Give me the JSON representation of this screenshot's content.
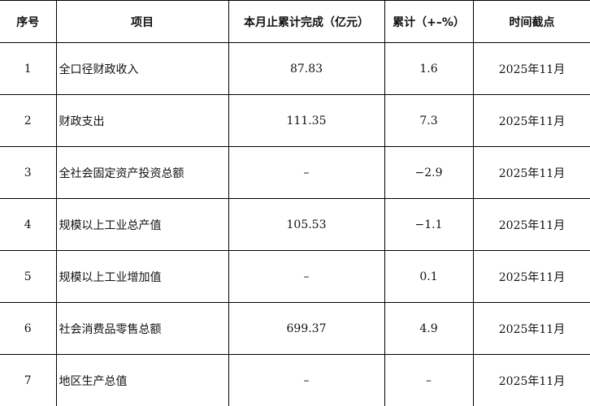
{
  "headers": [
    "序号",
    "项目",
    "本月止累计完成（亿元）",
    "累计（+–%）",
    "时间截点"
  ],
  "rows": [
    [
      "1",
      "全口径财政收入",
      "87.83",
      "1.6",
      "2025年11月"
    ],
    [
      "2",
      "财政支出",
      "111.35",
      "7.3",
      "2025年11月"
    ],
    [
      "3",
      "全社会固定资产投资总额",
      "–",
      "−2.9",
      "2025年11月"
    ],
    [
      "4",
      "规模以上工业总产值",
      "105.53",
      "−1.1",
      "2025年11月"
    ],
    [
      "5",
      "规模以上工业增加值",
      "–",
      "0.1",
      "2025年11月"
    ],
    [
      "6",
      "社会消费品零售总额",
      "699.37",
      "4.9",
      "2025年11月"
    ],
    [
      "7",
      "地区生产总值",
      "–",
      "–",
      "2025年11月"
    ]
  ]
}
